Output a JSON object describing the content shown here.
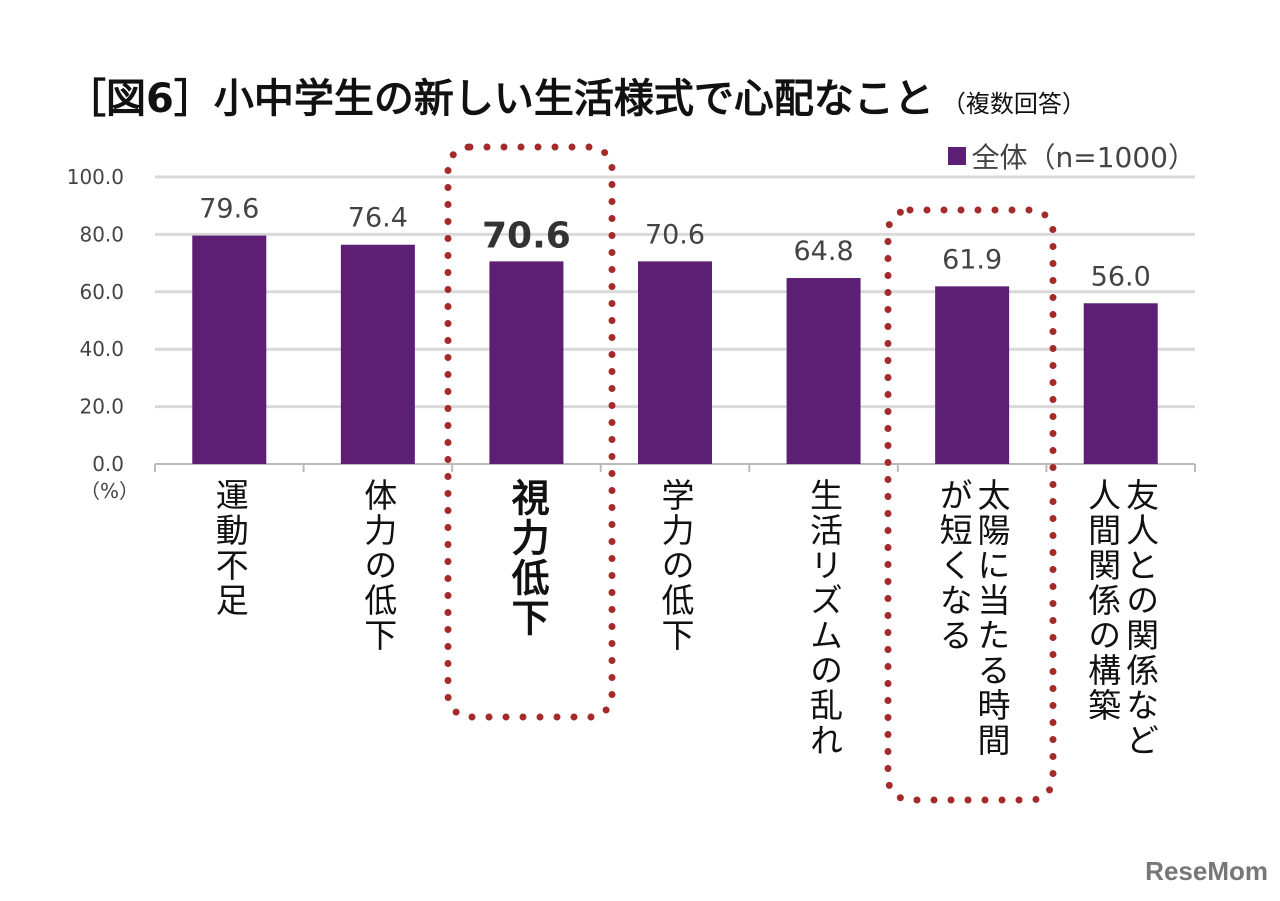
{
  "chart_data": {
    "type": "bar",
    "title": "［図6］小中学生の新しい生活様式で心配なこと",
    "subtitle": "（複数回答）",
    "ylabel": "（%）",
    "ylim": [
      0,
      100
    ],
    "yticks": [
      "0.0",
      "20.0",
      "40.0",
      "60.0",
      "80.0",
      "100.0"
    ],
    "grid": true,
    "legend_position": "top-right",
    "categories": [
      "運動不足",
      "体力の低下",
      "視力低下",
      "学力の低下",
      "生活リズムの乱れ",
      "太陽に当たる時間が短くなる",
      "友人との関係など人間関係の構築"
    ],
    "category_lines": [
      [
        "運動不足"
      ],
      [
        "体力の低下"
      ],
      [
        "視力低下"
      ],
      [
        "学力の低下"
      ],
      [
        "生活リズムの乱れ"
      ],
      [
        "太陽に当たる時間",
        "が短くなる"
      ],
      [
        "友人との関係など",
        "人間関係の構築"
      ]
    ],
    "series": [
      {
        "name": "全体（n=1000）",
        "values": [
          79.6,
          76.4,
          70.6,
          70.6,
          64.8,
          61.9,
          56.0
        ],
        "color": "#5c1f73"
      }
    ],
    "data_labels": [
      "79.6",
      "76.4",
      "70.6",
      "70.6",
      "64.8",
      "61.9",
      "56.0"
    ],
    "highlighted_categories": [
      "視力低下",
      "太陽に当たる時間が短くなる"
    ],
    "highlight_color": "#a52a2a"
  },
  "logo": "ReseMom"
}
